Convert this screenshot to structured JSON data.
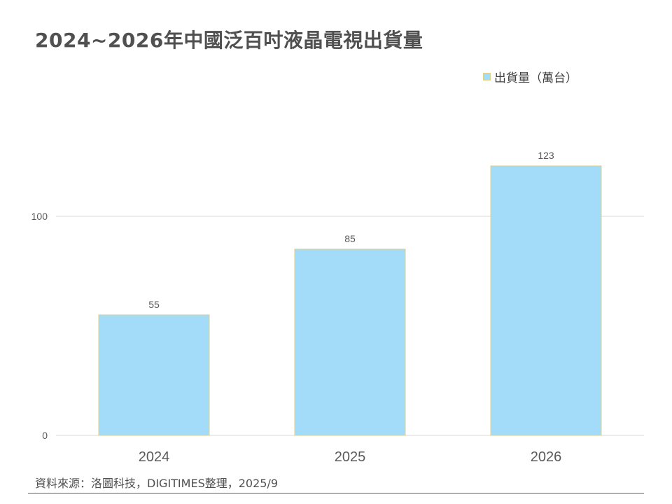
{
  "title": "2024~2026年中國泛百吋液晶電視出貨量",
  "source": "資料來源：洛圖科技，DIGITIMES整理，2025/9",
  "colors": {
    "bar_fill": "#a2dcf8",
    "bar_border": "#e2cf8a",
    "gridline": "#d9d9d9",
    "title_text": "#505050",
    "axis_text": "#595959"
  },
  "chart_data": {
    "type": "bar",
    "categories": [
      "2024",
      "2025",
      "2026"
    ],
    "series": [
      {
        "name": "出貨量（萬台）",
        "values": [
          55,
          85,
          123
        ]
      }
    ],
    "y_ticks": [
      0,
      100
    ],
    "ylim": [
      0,
      123
    ],
    "data_labels": [
      "55",
      "85",
      "123"
    ],
    "grid": true,
    "legend_position": "top-right"
  }
}
